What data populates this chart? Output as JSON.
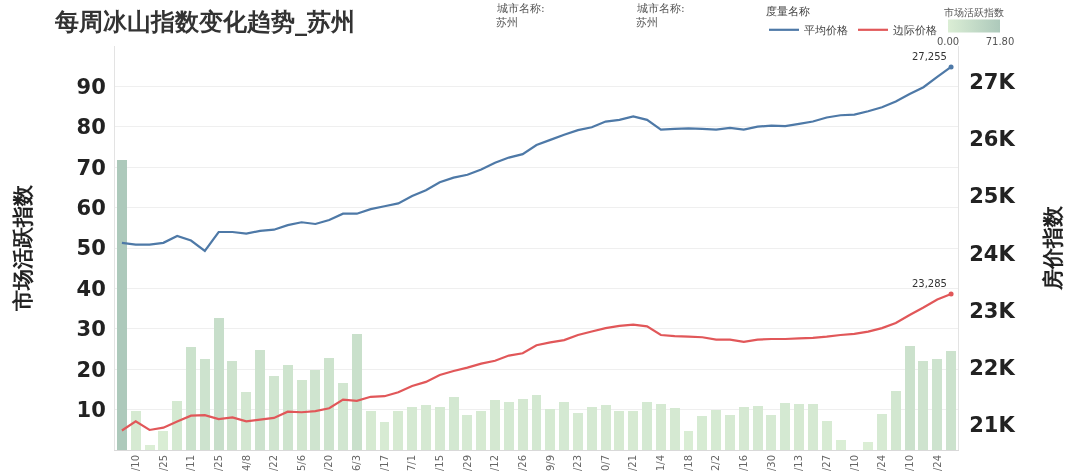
{
  "chart_data": {
    "type": "bar",
    "title": "每周冰山指数变化趋势_苏州",
    "ylabel": "市场活跃指数",
    "y2label": "房价指数",
    "legend_title": "度量名称",
    "clabel": "市场活跃指数",
    "clim": [
      0,
      71.8
    ],
    "cticks": [
      {
        "value": 0,
        "label": "0.00"
      },
      {
        "value": 71.8,
        "label": "71.80"
      }
    ],
    "annotations": [
      "城市名称:",
      "苏州",
      "城市名称:",
      "苏州"
    ],
    "categories": [
      null,
      "/10",
      null,
      "/25",
      null,
      "/11",
      null,
      "/25",
      null,
      "4/8",
      null,
      "/22",
      null,
      "5/6",
      null,
      "/20",
      null,
      "6/3",
      null,
      "/17",
      null,
      "7/1",
      null,
      "/15",
      null,
      "/29",
      null,
      "/12",
      null,
      "/26",
      null,
      "9/9",
      null,
      "/23",
      null,
      "0/7",
      null,
      "/21",
      null,
      "1/4",
      null,
      "/18",
      null,
      "2/2",
      null,
      "/16",
      null,
      "/30",
      null,
      "/13",
      null,
      "/27",
      null,
      "/10",
      null,
      "/24",
      null,
      "/10",
      null,
      "/24",
      null
    ],
    "series": [
      {
        "values": [
          71.8,
          9.6,
          1.3,
          4.6,
          12.1,
          25.4,
          22.5,
          32.7,
          22.1,
          14.4,
          24.7,
          18.3,
          21.1,
          17.3,
          19.9,
          22.7,
          16.7,
          28.6,
          9.7,
          6.9,
          9.6,
          10.6,
          11.1,
          10.6,
          13.1,
          8.7,
          9.6,
          12.4,
          11.9,
          12.7,
          13.6,
          10.2,
          11.8,
          9.1,
          10.6,
          11.1,
          9.6,
          9.6,
          11.9,
          11.3,
          10.5,
          4.7,
          8.5,
          10,
          8.7,
          10.7,
          10.8,
          8.7,
          11.7,
          11.3,
          11.3,
          7.3,
          2.6,
          null,
          2.1,
          9,
          14.7,
          25.8,
          22.1,
          22.5,
          24.6
        ],
        "colors": [
          "#adc9bb",
          "#d6ead2",
          "#dbeed5",
          "#d9edd4",
          "#d4e9d1",
          "#cbe2cc",
          "#cde3ce",
          "#c7deca",
          "#cee3ce",
          "#d3e7d1",
          "#cce2cd",
          "#d0e5cf",
          "#cee4ce",
          "#d1e6cf",
          "#cfe4cf",
          "#cde3cd",
          "#d1e6d0",
          "#c9e0cb",
          "#d6ead2",
          "#d7ebd3",
          "#d6ead2",
          "#d5e9d2",
          "#d5e9d2",
          "#d5e9d2",
          "#d3e8d1",
          "#d6ead3",
          "#d6ead2",
          "#d4e8d1",
          "#d4e9d2",
          "#d4e8d1",
          "#d3e8d1",
          "#d5ead2",
          "#d4e9d2",
          "#d6ead3",
          "#d5e9d2",
          "#d5e9d2",
          "#d6ead2",
          "#d6ead2",
          "#d4e9d2",
          "#d5e9d2",
          "#d5e9d2",
          "#d9edd4",
          "#d6ebd3",
          "#d5ead2",
          "#d6ead3",
          "#d5e9d2",
          "#d5e9d2",
          "#d6ead3",
          "#d4e9d2",
          "#d5e9d2",
          "#d5e9d2",
          "#d7ebd3",
          "#daeed5",
          null,
          "#dbeed5",
          "#d6ead3",
          "#d2e7d0",
          "#cbe1cc",
          "#cee3ce",
          "#cde3ce",
          "#cce2cd"
        ]
      },
      {
        "type": "line",
        "name": "平均价格",
        "axis": "y2",
        "color": "#4e79a7",
        "values": [
          24180,
          24150,
          24150,
          24180,
          24300,
          24220,
          24040,
          24370,
          24370,
          24340,
          24390,
          24410,
          24490,
          24540,
          24510,
          24580,
          24690,
          24690,
          24770,
          24820,
          24870,
          25000,
          25100,
          25240,
          25320,
          25370,
          25460,
          25580,
          25670,
          25730,
          25890,
          25980,
          26070,
          26150,
          26200,
          26300,
          26330,
          26390,
          26330,
          26160,
          26170,
          26180,
          26170,
          26160,
          26190,
          26160,
          26210,
          26230,
          26220,
          26260,
          26300,
          26370,
          26410,
          26420,
          26480,
          26550,
          26650,
          26780,
          26900,
          27080,
          27255
        ],
        "value_labels": [
          null,
          null,
          null,
          null,
          null,
          null,
          null,
          null,
          null,
          null,
          null,
          null,
          null,
          null,
          null,
          null,
          null,
          null,
          null,
          null,
          null,
          null,
          null,
          null,
          null,
          null,
          null,
          null,
          null,
          null,
          null,
          null,
          null,
          null,
          null,
          null,
          null,
          null,
          null,
          null,
          null,
          null,
          null,
          null,
          null,
          null,
          null,
          null,
          null,
          null,
          null,
          null,
          null,
          null,
          null,
          null,
          null,
          null,
          null,
          null,
          "27,255"
        ]
      },
      {
        "type": "line",
        "name": "边际价格",
        "axis": "y2",
        "color": "#e15759",
        "values": [
          20900,
          21060,
          20910,
          20950,
          21060,
          21160,
          21170,
          21100,
          21130,
          21060,
          21090,
          21120,
          21230,
          21220,
          21240,
          21290,
          21440,
          21420,
          21490,
          21500,
          21570,
          21680,
          21750,
          21870,
          21940,
          22000,
          22070,
          22120,
          22210,
          22250,
          22390,
          22440,
          22480,
          22570,
          22630,
          22690,
          22730,
          22750,
          22720,
          22570,
          22550,
          22540,
          22530,
          22490,
          22490,
          22450,
          22490,
          22500,
          22500,
          22510,
          22520,
          22540,
          22570,
          22590,
          22630,
          22690,
          22780,
          22920,
          23050,
          23190,
          23285
        ],
        "value_labels": [
          null,
          null,
          null,
          null,
          null,
          null,
          null,
          null,
          null,
          null,
          null,
          null,
          null,
          null,
          null,
          null,
          null,
          null,
          null,
          null,
          null,
          null,
          null,
          null,
          null,
          null,
          null,
          null,
          null,
          null,
          null,
          null,
          null,
          null,
          null,
          null,
          null,
          null,
          null,
          null,
          null,
          null,
          null,
          null,
          null,
          null,
          null,
          null,
          null,
          null,
          null,
          null,
          null,
          null,
          null,
          null,
          null,
          null,
          null,
          null,
          "23,285"
        ]
      }
    ],
    "ylim": [
      0,
      100
    ],
    "yticks": [
      10,
      20,
      30,
      40,
      50,
      60,
      70,
      80,
      90
    ],
    "y2lim": [
      20560,
      27620
    ],
    "y2ticks": [
      {
        "value": 21000,
        "label": "21K"
      },
      {
        "value": 22000,
        "label": "22K"
      },
      {
        "value": 23000,
        "label": "23K"
      },
      {
        "value": 24000,
        "label": "24K"
      },
      {
        "value": 25000,
        "label": "25K"
      },
      {
        "value": 26000,
        "label": "26K"
      },
      {
        "value": 27000,
        "label": "27K"
      }
    ],
    "grid": "y",
    "legend": "top right"
  }
}
